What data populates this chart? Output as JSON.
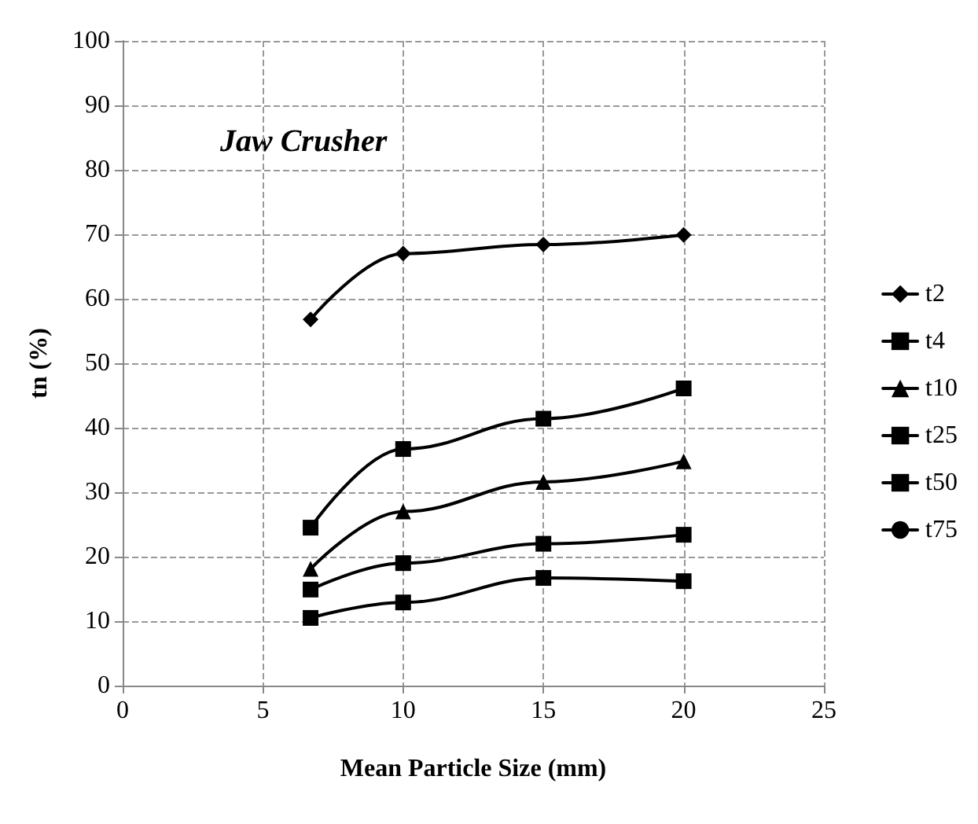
{
  "chart_data": {
    "type": "line",
    "xlabel": "Mean Particle Size (mm)",
    "ylabel": "tn (%)",
    "annotations": [
      "Jaw Crusher"
    ],
    "x": [
      6.7,
      10,
      15,
      20
    ],
    "xlim": [
      0,
      25
    ],
    "xticks": [
      0,
      5,
      10,
      15,
      20,
      25
    ],
    "ylim": [
      0,
      100
    ],
    "yticks": [
      0,
      10,
      20,
      30,
      40,
      50,
      60,
      70,
      80,
      90,
      100
    ],
    "grid": true,
    "legend": "right",
    "line_style": "solid",
    "series": [
      {
        "name": "t2",
        "color": "#000000",
        "marker": "diamond",
        "values": [
          56.8,
          67.0,
          68.4,
          69.9
        ]
      },
      {
        "name": "t4",
        "color": "#000000",
        "marker": "square",
        "values": [
          24.5,
          36.7,
          41.4,
          46.1
        ]
      },
      {
        "name": "t10",
        "color": "#000000",
        "marker": "triangle",
        "values": [
          18.1,
          27.0,
          31.6,
          34.8
        ]
      },
      {
        "name": "t25",
        "color": "#000000",
        "marker": "square",
        "values": [
          14.9,
          19.0,
          22.0,
          23.4
        ]
      },
      {
        "name": "t50",
        "color": "#000000",
        "marker": "square",
        "values": [
          10.5,
          12.9,
          16.7,
          16.2
        ]
      },
      {
        "name": "t75",
        "color": "#000000",
        "marker": "circle",
        "values": [
          null,
          null,
          null,
          null
        ]
      }
    ]
  }
}
